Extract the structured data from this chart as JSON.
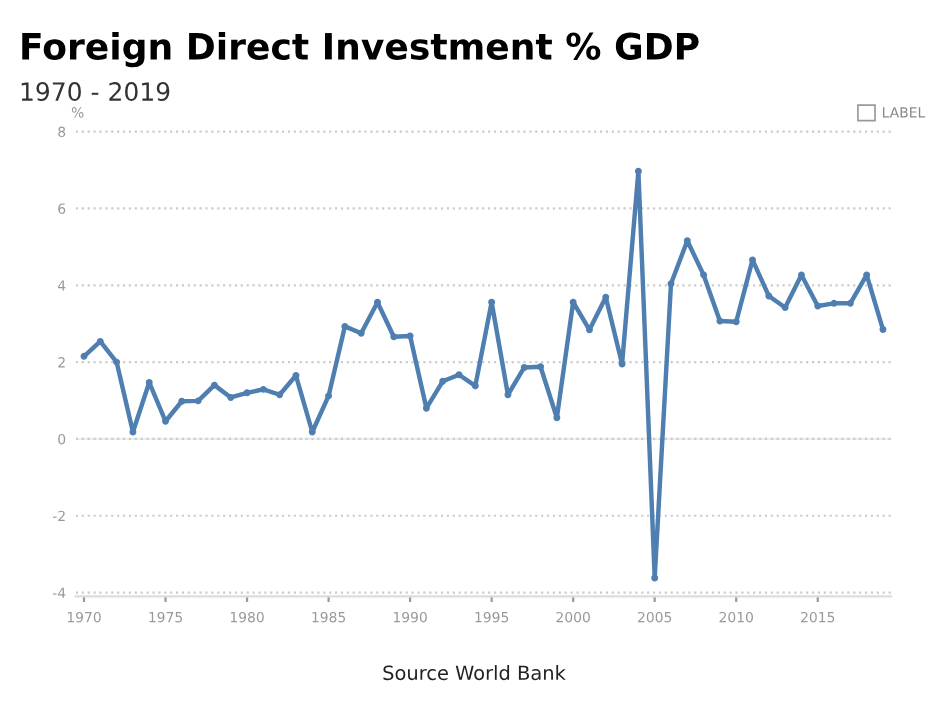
{
  "chart_data": {
    "type": "line",
    "title": "Foreign Direct Investment % GDP",
    "subtitle": "1970 - 2019",
    "ylabel": "%",
    "annotations": [
      "LABEL",
      "Source World Bank"
    ],
    "x": [
      1970,
      1971,
      1972,
      1973,
      1974,
      1975,
      1976,
      1977,
      1978,
      1979,
      1980,
      1981,
      1982,
      1983,
      1984,
      1985,
      1986,
      1987,
      1988,
      1989,
      1990,
      1991,
      1992,
      1993,
      1994,
      1995,
      1996,
      1997,
      1998,
      1999,
      2000,
      2001,
      2002,
      2003,
      2004,
      2005,
      2006,
      2007,
      2008,
      2009,
      2010,
      2011,
      2012,
      2013,
      2014,
      2015,
      2016,
      2017,
      2018,
      2019
    ],
    "series": [
      {
        "color": "#4f7fb0",
        "values": [
          2.15,
          2.54,
          2.0,
          0.18,
          1.47,
          0.46,
          0.98,
          0.99,
          1.4,
          1.08,
          1.2,
          1.29,
          1.15,
          1.65,
          0.18,
          1.12,
          2.93,
          2.75,
          3.56,
          2.66,
          2.68,
          0.8,
          1.5,
          1.67,
          1.38,
          3.56,
          1.15,
          1.86,
          1.88,
          0.55,
          3.56,
          2.84,
          3.69,
          1.95,
          6.97,
          -3.62,
          4.04,
          5.16,
          4.27,
          3.07,
          3.05,
          4.66,
          3.72,
          3.42,
          4.27,
          3.46,
          3.53,
          3.53,
          4.27,
          2.85
        ]
      }
    ],
    "xlim": [
      1969.5,
      2019.5
    ],
    "ylim": [
      -4.1,
      8.1
    ],
    "xticks": [
      1970,
      1975,
      1980,
      1985,
      1990,
      1995,
      2000,
      2005,
      2010,
      2015
    ],
    "yticks": [
      -4,
      -2,
      0,
      2,
      4,
      6,
      8
    ],
    "grid": "y",
    "marker": "circle",
    "line_style": "solid",
    "legend": false
  }
}
